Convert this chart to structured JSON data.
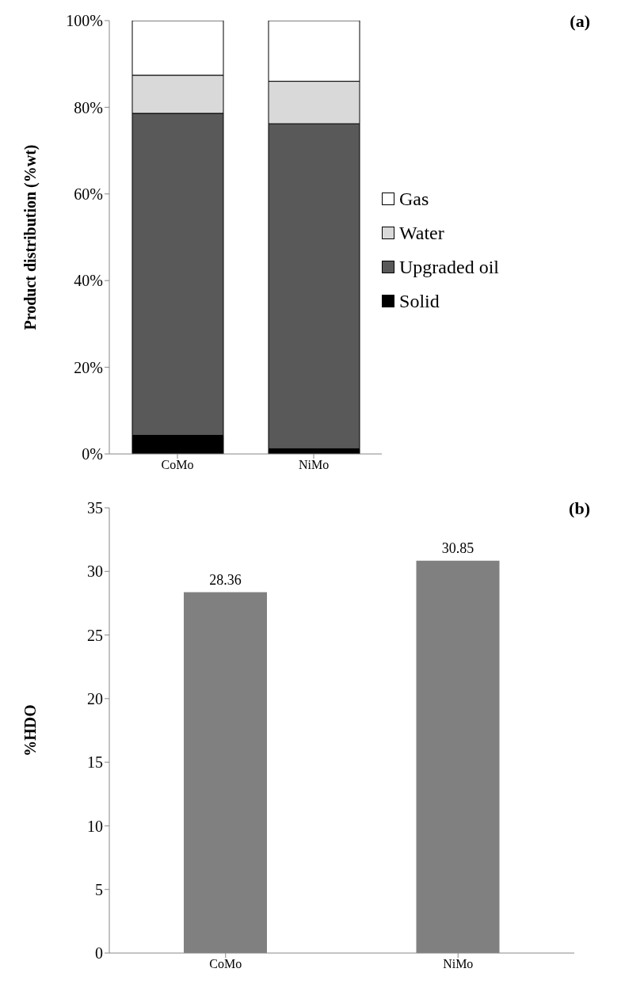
{
  "chart_data": [
    {
      "type": "bar",
      "annotations": [
        "(a)"
      ],
      "ylabel": "Product distribution (%wt)",
      "categories": [
        "CoMo",
        "NiMo"
      ],
      "stacked": true,
      "legend": "right",
      "series": [
        {
          "name": "Solid",
          "color": "#000000",
          "values": [
            4.3,
            1.2
          ]
        },
        {
          "name": "Upgraded oil",
          "color": "#595959",
          "values": [
            74.3,
            75.0
          ]
        },
        {
          "name": "Water",
          "color": "#d9d9d9",
          "values": [
            8.8,
            9.8
          ]
        },
        {
          "name": "Gas",
          "color": "#ffffff",
          "values": [
            12.6,
            14.0
          ]
        }
      ],
      "ylim": [
        0,
        100
      ],
      "yticks": [
        {
          "value": 0,
          "label": "0%"
        },
        {
          "value": 20,
          "label": "20%"
        },
        {
          "value": 40,
          "label": "40%"
        },
        {
          "value": 60,
          "label": "60%"
        },
        {
          "value": 80,
          "label": "80%"
        },
        {
          "value": 100,
          "label": "100%"
        }
      ]
    },
    {
      "type": "bar",
      "annotations": [
        "(b)"
      ],
      "ylabel": "%HDO",
      "categories": [
        "CoMo",
        "NiMo"
      ],
      "values": [
        28.36,
        30.85
      ],
      "color": "#808080",
      "data_labels": true,
      "ylim": [
        0,
        35
      ],
      "yticks": [
        0,
        5,
        10,
        15,
        20,
        25,
        30,
        35
      ]
    }
  ]
}
